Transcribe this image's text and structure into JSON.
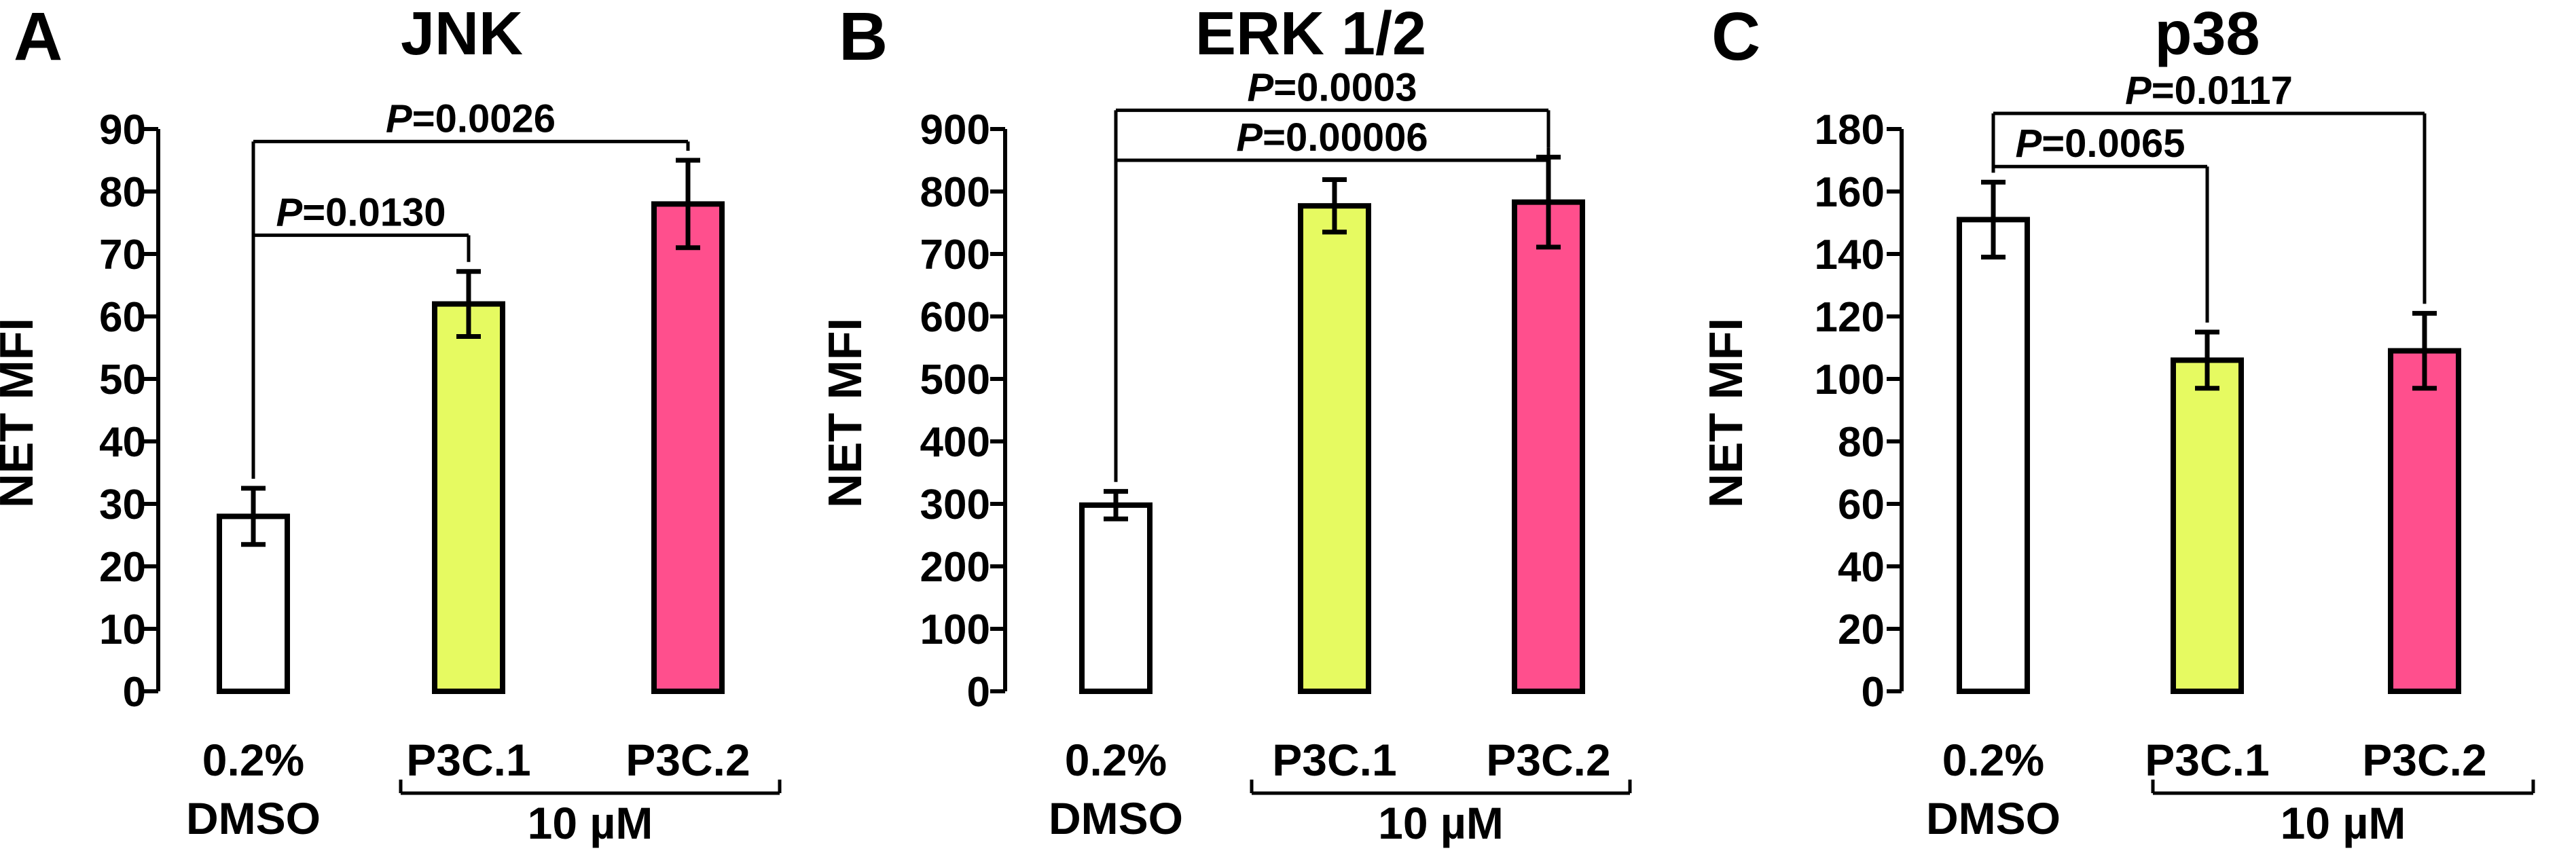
{
  "chart_data": [
    {
      "type": "bar",
      "panel_letter": "A",
      "title": "JNK",
      "ylabel": "NET MFI",
      "ylim": [
        0,
        90
      ],
      "yticks": [
        0,
        10,
        20,
        30,
        40,
        50,
        60,
        70,
        80,
        90
      ],
      "categories": [
        "0.2%\nDMSO",
        "P3C.1",
        "P3C.2"
      ],
      "values": [
        28,
        62,
        78
      ],
      "errors": [
        4.5,
        5.2,
        7
      ],
      "colors": [
        "#ffffff",
        "#e6fa61",
        "#ff4f8d"
      ],
      "group_label": "10 µM",
      "group_categories": [
        1,
        2
      ],
      "comparisons": [
        {
          "p_prefix": "P",
          "p_value": "=0.0130",
          "from": 0,
          "to": 1,
          "y": 73
        },
        {
          "p_prefix": "P",
          "p_value": "=0.0026",
          "from": 0,
          "to": 2,
          "y": 88
        }
      ]
    },
    {
      "type": "bar",
      "panel_letter": "B",
      "title": "ERK 1/2",
      "ylabel": "NET MFI",
      "ylim": [
        0,
        900
      ],
      "yticks": [
        0,
        100,
        200,
        300,
        400,
        500,
        600,
        700,
        800,
        900
      ],
      "categories": [
        "0.2%\nDMSO",
        "P3C.1",
        "P3C.2"
      ],
      "values": [
        298,
        777,
        783
      ],
      "errors": [
        22,
        42,
        72
      ],
      "colors": [
        "#ffffff",
        "#e6fa61",
        "#ff4f8d"
      ],
      "group_label": "10 µM",
      "group_categories": [
        1,
        2
      ],
      "comparisons": [
        {
          "p_prefix": "P",
          "p_value": "=0.00006",
          "from": 0,
          "to": 2,
          "y": 850
        },
        {
          "p_prefix": "P",
          "p_value": "=0.0003",
          "from": 0,
          "to": 2,
          "y": 930
        }
      ]
    },
    {
      "type": "bar",
      "panel_letter": "C",
      "title": "p38",
      "ylabel": "NET MFI",
      "ylim": [
        0,
        180
      ],
      "yticks": [
        0,
        20,
        40,
        60,
        80,
        100,
        120,
        140,
        160,
        180
      ],
      "categories": [
        "0.2%\nDMSO",
        "P3C.1",
        "P3C.2"
      ],
      "values": [
        151,
        106,
        109
      ],
      "errors": [
        12,
        9,
        12
      ],
      "colors": [
        "#ffffff",
        "#e6fa61",
        "#ff4f8d"
      ],
      "group_label": "10 µM",
      "group_categories": [
        1,
        2
      ],
      "comparisons": [
        {
          "p_prefix": "P",
          "p_value": "=0.0065",
          "from": 0,
          "to": 1,
          "y": 168
        },
        {
          "p_prefix": "P",
          "p_value": "=0.0117",
          "from": 0,
          "to": 2,
          "y": 185
        }
      ]
    }
  ]
}
